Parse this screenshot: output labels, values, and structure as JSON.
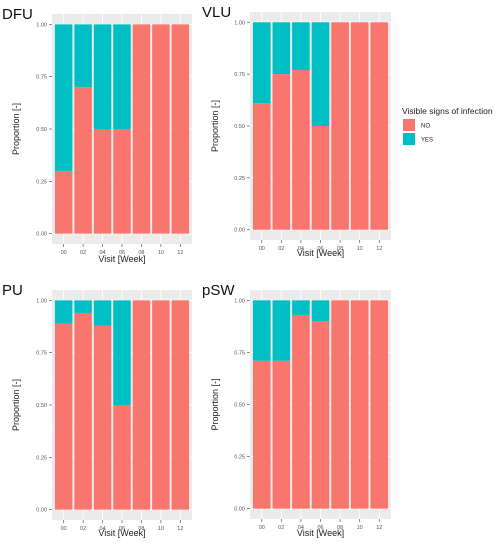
{
  "chart_data": [
    {
      "type": "bar",
      "title": "DFU",
      "xlabel": "Visit [Week]",
      "ylabel": "Proportion [-]",
      "ylim": [
        0,
        1
      ],
      "yticks": [
        "0.00",
        "0.25",
        "0.50",
        "0.75",
        "1.00"
      ],
      "categories": [
        "00",
        "02",
        "04",
        "06",
        "08",
        "10",
        "12"
      ],
      "stacked": true,
      "series": [
        {
          "name": "NO",
          "values": [
            0.3,
            0.7,
            0.5,
            0.5,
            1.0,
            1.0,
            1.0
          ]
        },
        {
          "name": "YES",
          "values": [
            0.7,
            0.3,
            0.5,
            0.5,
            0.0,
            0.0,
            0.0
          ]
        }
      ]
    },
    {
      "type": "bar",
      "title": "VLU",
      "xlabel": "Visit [Week]",
      "ylabel": "Proportion [-]",
      "ylim": [
        0,
        1
      ],
      "yticks": [
        "0.00",
        "0.25",
        "0.50",
        "0.75",
        "1.00"
      ],
      "categories": [
        "00",
        "02",
        "04",
        "06",
        "08",
        "10",
        "12"
      ],
      "stacked": true,
      "series": [
        {
          "name": "NO",
          "values": [
            0.61,
            0.75,
            0.77,
            0.5,
            1.0,
            1.0,
            1.0
          ]
        },
        {
          "name": "YES",
          "values": [
            0.39,
            0.25,
            0.23,
            0.5,
            0.0,
            0.0,
            0.0
          ]
        }
      ]
    },
    {
      "type": "bar",
      "title": "PU",
      "xlabel": "Visit [Week]",
      "ylabel": "Proportion [-]",
      "ylim": [
        0,
        1
      ],
      "yticks": [
        "0.00",
        "0.25",
        "0.50",
        "0.75",
        "1.00"
      ],
      "categories": [
        "00",
        "02",
        "04",
        "06",
        "08",
        "10",
        "12"
      ],
      "stacked": true,
      "series": [
        {
          "name": "NO",
          "values": [
            0.89,
            0.94,
            0.88,
            0.5,
            1.0,
            1.0,
            1.0
          ]
        },
        {
          "name": "YES",
          "values": [
            0.11,
            0.06,
            0.12,
            0.5,
            0.0,
            0.0,
            0.0
          ]
        }
      ]
    },
    {
      "type": "bar",
      "title": "pSW",
      "xlabel": "Visit [Week]",
      "ylabel": "Proportion [-]",
      "ylim": [
        0,
        1
      ],
      "yticks": [
        "0.00",
        "0.25",
        "0.50",
        "0.75",
        "1.00"
      ],
      "categories": [
        "00",
        "02",
        "04",
        "06",
        "08",
        "10",
        "12"
      ],
      "stacked": true,
      "series": [
        {
          "name": "NO",
          "values": [
            0.71,
            0.71,
            0.93,
            0.9,
            1.0,
            1.0,
            1.0
          ]
        },
        {
          "name": "YES",
          "values": [
            0.29,
            0.29,
            0.07,
            0.1,
            0.0,
            0.0,
            0.0
          ]
        }
      ]
    }
  ],
  "legend": {
    "title": "Visible signs of infection",
    "placement": "right",
    "items": [
      {
        "label": "NO",
        "color": "#F8766D"
      },
      {
        "label": "YES",
        "color": "#00BFC4"
      }
    ]
  },
  "colors": {
    "NO": "#F8766D",
    "YES": "#00BFC4",
    "panel_background": "#EBEBEB",
    "grid": "#FFFFFF"
  },
  "grid": true
}
